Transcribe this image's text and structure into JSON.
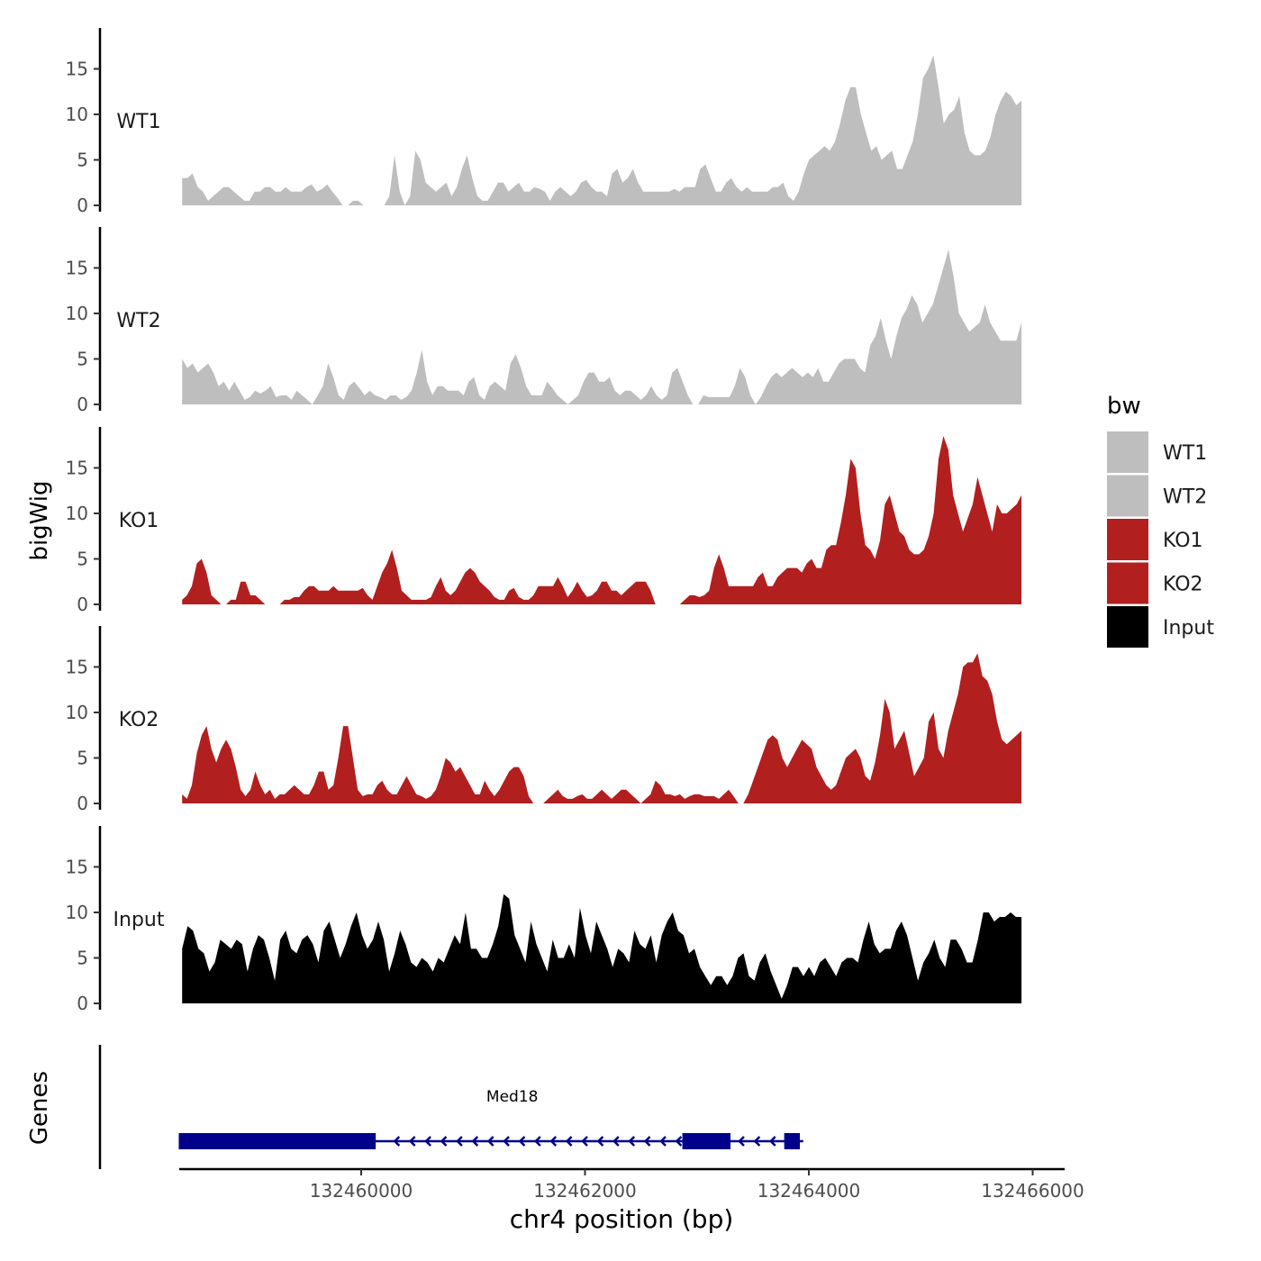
{
  "chart_data": {
    "type": "area",
    "chromosome": "chr4",
    "xlabel": "chr4 position (bp)",
    "ylabel": "bigWig",
    "genes_label": "Genes",
    "xlim": [
      132457900,
      132466300
    ],
    "x_ticks": [
      132460000,
      132462000,
      132464000,
      132466000
    ],
    "ylim": [
      0,
      19.5
    ],
    "y_ticks": [
      0,
      5,
      10,
      15
    ],
    "legend": {
      "title": "bw",
      "placement": "right",
      "entries": [
        {
          "name": "WT1",
          "color": "#bebebe"
        },
        {
          "name": "WT2",
          "color": "#bebebe"
        },
        {
          "name": "KO1",
          "color": "#b21f1f"
        },
        {
          "name": "KO2",
          "color": "#b21f1f"
        },
        {
          "name": "Input",
          "color": "#000000"
        }
      ]
    },
    "x_start": 132458400,
    "x_end": 132465900,
    "tracks": [
      {
        "name": "WT1",
        "color": "#bebebe",
        "values": [
          3,
          3,
          3.5,
          2,
          1.5,
          0.5,
          1,
          1.5,
          2,
          2,
          1.5,
          1,
          0.5,
          0.5,
          1.5,
          1.5,
          2,
          2,
          1.5,
          1.5,
          2,
          1.5,
          1.5,
          1.5,
          2,
          2.3,
          1.5,
          1.8,
          2.3,
          1.5,
          0.8,
          0,
          0,
          0.5,
          0.5,
          0,
          0,
          0,
          0,
          0,
          1,
          5.5,
          1.5,
          0,
          1,
          6,
          5,
          2.5,
          2,
          1.5,
          2,
          2.5,
          1,
          2,
          4,
          5.5,
          3,
          1,
          0.5,
          0.5,
          1.5,
          2.5,
          2.5,
          1.5,
          2,
          2.5,
          1.5,
          1.5,
          2,
          1.8,
          1.5,
          0.5,
          1.5,
          2,
          1.5,
          1,
          1.5,
          2.5,
          2.8,
          2,
          1.5,
          1.5,
          1,
          3.5,
          4,
          2.5,
          3,
          4,
          2.5,
          1.5,
          1.5,
          1.5,
          1.5,
          1.5,
          1.5,
          1.8,
          1.5,
          2,
          2,
          2,
          4,
          4.5,
          3,
          1.5,
          1.5,
          2.5,
          3,
          2,
          1.5,
          2,
          1.5,
          1.5,
          1.5,
          1.5,
          2,
          2,
          2.5,
          1,
          0.5,
          1.5,
          3.5,
          5,
          5.5,
          6,
          6.5,
          6,
          7,
          9,
          11.5,
          13,
          13,
          10,
          8,
          6,
          6.5,
          5,
          5.5,
          6,
          4,
          4,
          5.5,
          7,
          10,
          14,
          15,
          16.5,
          13,
          9,
          10,
          10.5,
          12,
          8,
          6,
          5.5,
          5.5,
          6,
          7.5,
          10,
          11.5,
          12.5,
          12,
          11,
          11.5
        ]
      },
      {
        "name": "WT2",
        "color": "#bebebe",
        "values": [
          5,
          4,
          4.5,
          3.5,
          4,
          4.5,
          3.5,
          2,
          2.5,
          1.5,
          2.5,
          1.5,
          0.5,
          0.8,
          1.5,
          1.2,
          1.5,
          2,
          0.8,
          1,
          1,
          0.5,
          1.5,
          1,
          0.5,
          0,
          1,
          2,
          4.5,
          3,
          1,
          0.5,
          2,
          2.5,
          1.8,
          1,
          1.5,
          1,
          0.8,
          0.5,
          1,
          1,
          0.5,
          0.8,
          1.5,
          3.5,
          6,
          2.5,
          1,
          2,
          2,
          1.5,
          1.5,
          1.5,
          1,
          2.5,
          3,
          1,
          0.5,
          2,
          2.5,
          2,
          1.5,
          4.5,
          5.5,
          4,
          2,
          1,
          1,
          1,
          2.5,
          1.8,
          1,
          0.5,
          0,
          0.5,
          1,
          2.5,
          3.5,
          3.5,
          2.5,
          2.5,
          3,
          1.5,
          1,
          1.5,
          1.5,
          1,
          0.5,
          1,
          2,
          1,
          0.5,
          1,
          3.5,
          4,
          2.5,
          1,
          0,
          0,
          1,
          0.8,
          0.8,
          0.8,
          0.8,
          0.8,
          2,
          4,
          3,
          1,
          0,
          0.8,
          2,
          3,
          3.5,
          3,
          3.5,
          4,
          3.5,
          3,
          3.5,
          3,
          4,
          2.5,
          2.5,
          3.5,
          4.5,
          5,
          5,
          5,
          4,
          3.5,
          6.5,
          7.5,
          9.5,
          7,
          5,
          7.5,
          9.5,
          10.5,
          12,
          11,
          9,
          10,
          11,
          13,
          15,
          17,
          14,
          10,
          9,
          8,
          8.5,
          9,
          11,
          9,
          8,
          7,
          7,
          7,
          7,
          9
        ]
      },
      {
        "name": "KO1",
        "color": "#b21f1f",
        "values": [
          0.5,
          1,
          2,
          4.5,
          5,
          3.5,
          1,
          0.5,
          0,
          0,
          0.5,
          0.5,
          2.5,
          2.5,
          1,
          1,
          0.5,
          0,
          0,
          0,
          0,
          0.5,
          0.5,
          0.8,
          0.8,
          1.5,
          2,
          2,
          1.5,
          1.5,
          1.5,
          2,
          1.5,
          1.5,
          1.5,
          1.5,
          1.5,
          1.8,
          1,
          0.5,
          2,
          3.5,
          4.5,
          6,
          4,
          1.5,
          1,
          0.5,
          0.5,
          0.5,
          0.5,
          0.8,
          2,
          3,
          1.5,
          1,
          1.5,
          2.5,
          3.5,
          4,
          3.5,
          2.5,
          2,
          1.5,
          0.8,
          0.5,
          0.5,
          1.5,
          1.8,
          0.8,
          0.5,
          0.5,
          1,
          2,
          2,
          2,
          2,
          3,
          2,
          0.8,
          1.5,
          2.5,
          1.5,
          0.8,
          1,
          1.5,
          2.5,
          2.5,
          1.5,
          1.5,
          1,
          1.5,
          2,
          2.5,
          2.5,
          2.5,
          1.5,
          0,
          0,
          0,
          0,
          0,
          0,
          0.5,
          1,
          1,
          0.8,
          1,
          1.5,
          4,
          5.5,
          4,
          2,
          2,
          2,
          2,
          2,
          2,
          3,
          3.5,
          2,
          2,
          3,
          3.5,
          4,
          4,
          4,
          3.5,
          4.5,
          5,
          4,
          4,
          6,
          6.5,
          6.5,
          9,
          12,
          16,
          15,
          10,
          6.5,
          6,
          5,
          7,
          11,
          12,
          10,
          8,
          7.5,
          6,
          5.5,
          5.5,
          6,
          7.5,
          10,
          16,
          18.5,
          17,
          12,
          10,
          8,
          9.5,
          11,
          14,
          12,
          10,
          8,
          11,
          10,
          10,
          10.5,
          11,
          12
        ]
      },
      {
        "name": "KO2",
        "color": "#b21f1f",
        "values": [
          1,
          0.5,
          2,
          5.5,
          7.5,
          8.5,
          6,
          4.5,
          6,
          7,
          6,
          4,
          1.5,
          0.8,
          1.5,
          3.5,
          2,
          1,
          1.5,
          0.5,
          1,
          1,
          1.5,
          2,
          1.5,
          1,
          1,
          2,
          3.5,
          3.5,
          1.5,
          2,
          5,
          8.5,
          8.5,
          5,
          1.5,
          0.8,
          1,
          1,
          2,
          2.5,
          1.5,
          1,
          1,
          2,
          3,
          2,
          1,
          0.8,
          0.5,
          0.8,
          1.5,
          3,
          5,
          4.5,
          3.5,
          4,
          3,
          2,
          1,
          1,
          2.5,
          1.5,
          0.8,
          1.5,
          2.5,
          3.5,
          4,
          4,
          3,
          0.8,
          0,
          0,
          0,
          0.5,
          1,
          1.5,
          0.8,
          0.5,
          0.5,
          0.8,
          1,
          0.5,
          0.5,
          1,
          1.5,
          1,
          0.5,
          1,
          1.5,
          1.5,
          1,
          0.5,
          0,
          0.5,
          1,
          2.5,
          2,
          1,
          1,
          0.8,
          1,
          0.5,
          0.8,
          1,
          1,
          0.8,
          0.8,
          0.8,
          0.5,
          1,
          1.5,
          0.8,
          0,
          0,
          1,
          2.5,
          4,
          5.5,
          7,
          7.5,
          7,
          5,
          4,
          5,
          6,
          7,
          6.5,
          6,
          4,
          3,
          2,
          1.5,
          2,
          3.5,
          5,
          5.5,
          6,
          5,
          3,
          2.5,
          4.5,
          7.5,
          11.5,
          10,
          6,
          7,
          8,
          5.5,
          3,
          4,
          5,
          9,
          10,
          6,
          5,
          8,
          10,
          12,
          15,
          15.5,
          15.5,
          16.5,
          14,
          13.5,
          12,
          9,
          7,
          6.5,
          7,
          7.5,
          8
        ]
      },
      {
        "name": "Input",
        "color": "#000000",
        "values": [
          6,
          8.5,
          8,
          6,
          5.5,
          3.5,
          4.5,
          7,
          6.5,
          6,
          7,
          6.5,
          3.5,
          6,
          7.5,
          7,
          5,
          2.5,
          7,
          8,
          6,
          5.5,
          7,
          7.5,
          6.5,
          4.5,
          8,
          9,
          7,
          5,
          6.5,
          8.5,
          10,
          7.5,
          6,
          7,
          9,
          7,
          3.5,
          5.5,
          8,
          6.5,
          4.5,
          4,
          5,
          4.5,
          3.5,
          5,
          4.5,
          6,
          7.5,
          6.5,
          10,
          6,
          6,
          5,
          5,
          6.5,
          8.5,
          12,
          11.5,
          7.5,
          6,
          4.5,
          9,
          6.5,
          5,
          3.5,
          7,
          5,
          5,
          6.5,
          5,
          10.5,
          7.5,
          5.5,
          9,
          7.5,
          6,
          4,
          6,
          5.5,
          4.5,
          8,
          6.5,
          6,
          7.5,
          4.5,
          7.5,
          9,
          10,
          8,
          7.5,
          5.5,
          6,
          4,
          3,
          2,
          3,
          3,
          2,
          3,
          5,
          5.5,
          3,
          2.5,
          4.5,
          5.5,
          3.5,
          2,
          0.5,
          2,
          4,
          4,
          3,
          4,
          3,
          4.5,
          5,
          4,
          3,
          4.5,
          5,
          5,
          4.5,
          7,
          9,
          6.5,
          5.5,
          6,
          6,
          8,
          9,
          7.5,
          5,
          2.5,
          4.5,
          5.5,
          7,
          5,
          4,
          7,
          7,
          6,
          4.5,
          4.5,
          7,
          10,
          10,
          9,
          9.5,
          9.5,
          10,
          9.5,
          9.5
        ]
      }
    ],
    "gene": {
      "name": "Med18",
      "start": 132458370,
      "end": 132463950,
      "strand": "-",
      "exons": [
        [
          132458370,
          132460130
        ],
        [
          132462870,
          132463300
        ],
        [
          132463780,
          132463920
        ]
      ]
    }
  }
}
